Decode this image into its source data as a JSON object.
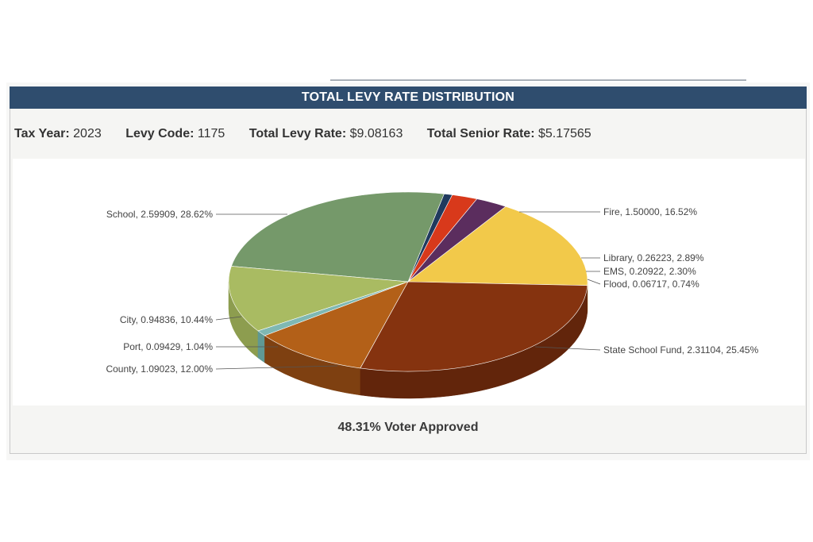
{
  "header": {
    "title": "TOTAL LEVY RATE DISTRIBUTION"
  },
  "info": {
    "tax_year_label": "Tax Year:",
    "tax_year": "2023",
    "levy_code_label": "Levy Code:",
    "levy_code": "1175",
    "total_levy_label": "Total Levy Rate:",
    "total_levy": "$9.08163",
    "senior_rate_label": "Total Senior Rate:",
    "senior_rate": "$5.17565"
  },
  "footer": {
    "voter_approved": "48.31% Voter Approved"
  },
  "chart_data": {
    "type": "pie",
    "title": "TOTAL LEVY RATE DISTRIBUTION",
    "slices": [
      {
        "name": "Fire",
        "value": 1.5,
        "percent": 16.52,
        "label": "Fire, 1.50000, 16.52%",
        "color": "#f2c94a",
        "side_color": "#c9a23a"
      },
      {
        "name": "Library",
        "value": 0.26223,
        "percent": 2.89,
        "label": "Library, 0.26223, 2.89%",
        "color": "#5b2d5e",
        "side_color": "#4a2350"
      },
      {
        "name": "EMS",
        "value": 0.20922,
        "percent": 2.3,
        "label": "EMS, 0.20922, 2.30%",
        "color": "#d8391b",
        "side_color": "#a82c14"
      },
      {
        "name": "Flood",
        "value": 0.06717,
        "percent": 0.74,
        "label": "Flood, 0.06717, 0.74%",
        "color": "#203a5e",
        "side_color": "#1a2f4d"
      },
      {
        "name": "State School Fund",
        "value": 2.31104,
        "percent": 25.45,
        "label": "State School Fund, 2.31104, 25.45%",
        "color": "#75996a",
        "side_color": "#4f6b48"
      },
      {
        "name": "County",
        "value": 1.09023,
        "percent": 12.0,
        "label": "County, 1.09023, 12.00%",
        "color": "#a9bb62",
        "side_color": "#8d9d4f"
      },
      {
        "name": "Port",
        "value": 0.09429,
        "percent": 1.04,
        "label": "Port, 0.09429, 1.04%",
        "color": "#7fb8b3",
        "side_color": "#5f9994"
      },
      {
        "name": "City",
        "value": 0.94836,
        "percent": 10.44,
        "label": "City, 0.94836, 10.44%",
        "color": "#b36018",
        "side_color": "#7e4011"
      },
      {
        "name": "School",
        "value": 2.59909,
        "percent": 28.62,
        "label": "School, 2.59909, 28.62%",
        "color": "#85330f",
        "side_color": "#62250b"
      }
    ]
  }
}
